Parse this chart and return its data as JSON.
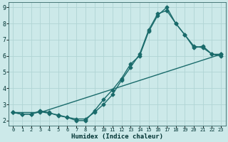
{
  "xlabel": "Humidex (Indice chaleur)",
  "xlim": [
    -0.5,
    23.5
  ],
  "ylim": [
    1.7,
    9.3
  ],
  "xticks": [
    0,
    1,
    2,
    3,
    4,
    5,
    6,
    7,
    8,
    9,
    10,
    11,
    12,
    13,
    14,
    15,
    16,
    17,
    18,
    19,
    20,
    21,
    22,
    23
  ],
  "yticks": [
    2,
    3,
    4,
    5,
    6,
    7,
    8,
    9
  ],
  "bg_color": "#cce9e9",
  "grid_color": "#b0d4d4",
  "line_color": "#1a6b6b",
  "line1_x": [
    0,
    1,
    2,
    3,
    4,
    5,
    6,
    7,
    8,
    9,
    10,
    11,
    12,
    13,
    14,
    15,
    16,
    17,
    18,
    19,
    20,
    21,
    22,
    23
  ],
  "line1_y": [
    2.5,
    2.4,
    2.4,
    2.6,
    2.5,
    2.3,
    2.2,
    2.0,
    2.0,
    2.6,
    3.3,
    3.9,
    4.6,
    5.5,
    6.0,
    7.5,
    8.5,
    9.0,
    8.0,
    7.3,
    6.5,
    6.6,
    6.1,
    6.1
  ],
  "line2_x": [
    0,
    1,
    2,
    3,
    4,
    5,
    6,
    7,
    8,
    9,
    10,
    11,
    12,
    13,
    14,
    15,
    16,
    17,
    18,
    19,
    20,
    21,
    22,
    23
  ],
  "line2_y": [
    2.5,
    2.4,
    2.4,
    2.55,
    2.45,
    2.35,
    2.2,
    2.1,
    2.1,
    2.5,
    3.0,
    3.6,
    4.5,
    5.3,
    6.1,
    7.6,
    8.6,
    8.8,
    8.0,
    7.3,
    6.6,
    6.5,
    6.1,
    6.0
  ],
  "line3_x": [
    0,
    3,
    23
  ],
  "line3_y": [
    2.5,
    2.5,
    6.1
  ],
  "marker": "D",
  "marker_size": 2.5,
  "line_width": 1.0,
  "font_family": "monospace",
  "tick_fontsize_x": 5.0,
  "tick_fontsize_y": 6.0,
  "xlabel_fontsize": 6.5,
  "tick_color": "#003333",
  "spine_color": "#336666"
}
